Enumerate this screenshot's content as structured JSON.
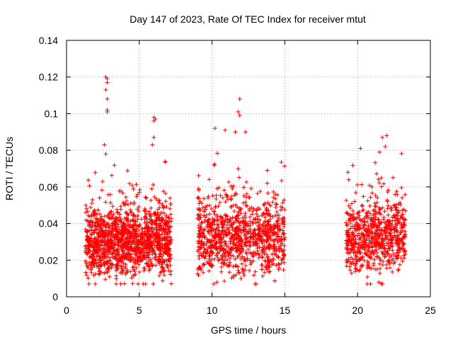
{
  "chart_data": {
    "type": "scatter",
    "title": "Day 147 of 2023, Rate Of TEC Index for receiver mtut",
    "xlabel": "GPS time / hours",
    "ylabel": "ROTI / TECUs",
    "xlim": [
      0,
      25
    ],
    "ylim": [
      0,
      0.14
    ],
    "x_ticks": [
      "0",
      "5",
      "10",
      "15",
      "20",
      "25"
    ],
    "y_ticks": [
      "0",
      "0.02",
      "0.04",
      "0.06",
      "0.08",
      "0.1",
      "0.12",
      "0.14"
    ],
    "grid": true,
    "marker": "+",
    "series": [
      {
        "color": "#ff0000",
        "clusters": [
          {
            "x_range": [
              1.3,
              7.2
            ],
            "y_center": 0.03,
            "y_spread": 0.01,
            "count": 1400
          },
          {
            "x_range": [
              9.0,
              15.0
            ],
            "y_center": 0.033,
            "y_spread": 0.011,
            "count": 1000
          },
          {
            "x_range": [
              19.2,
              23.3
            ],
            "y_center": 0.033,
            "y_spread": 0.011,
            "count": 700
          }
        ],
        "extremes": [
          {
            "x": 2.7,
            "y": 0.12
          },
          {
            "x": 2.8,
            "y": 0.119
          },
          {
            "x": 2.8,
            "y": 0.117
          },
          {
            "x": 2.7,
            "y": 0.113
          },
          {
            "x": 2.8,
            "y": 0.108
          },
          {
            "x": 2.8,
            "y": 0.102
          },
          {
            "x": 2.8,
            "y": 0.101
          },
          {
            "x": 2.6,
            "y": 0.083
          },
          {
            "x": 2.7,
            "y": 0.078
          },
          {
            "x": 6.0,
            "y": 0.098
          },
          {
            "x": 6.1,
            "y": 0.097
          },
          {
            "x": 6.0,
            "y": 0.096
          },
          {
            "x": 6.0,
            "y": 0.087
          },
          {
            "x": 5.9,
            "y": 0.083
          },
          {
            "x": 11.9,
            "y": 0.108
          },
          {
            "x": 11.8,
            "y": 0.101
          },
          {
            "x": 11.9,
            "y": 0.099
          },
          {
            "x": 10.2,
            "y": 0.092
          },
          {
            "x": 10.9,
            "y": 0.091
          },
          {
            "x": 12.3,
            "y": 0.09
          },
          {
            "x": 11.6,
            "y": 0.09
          },
          {
            "x": 13.8,
            "y": 0.069
          },
          {
            "x": 22.0,
            "y": 0.088
          },
          {
            "x": 21.7,
            "y": 0.087
          },
          {
            "x": 21.9,
            "y": 0.082
          },
          {
            "x": 20.2,
            "y": 0.081
          },
          {
            "x": 21.5,
            "y": 0.079
          }
        ]
      }
    ]
  }
}
